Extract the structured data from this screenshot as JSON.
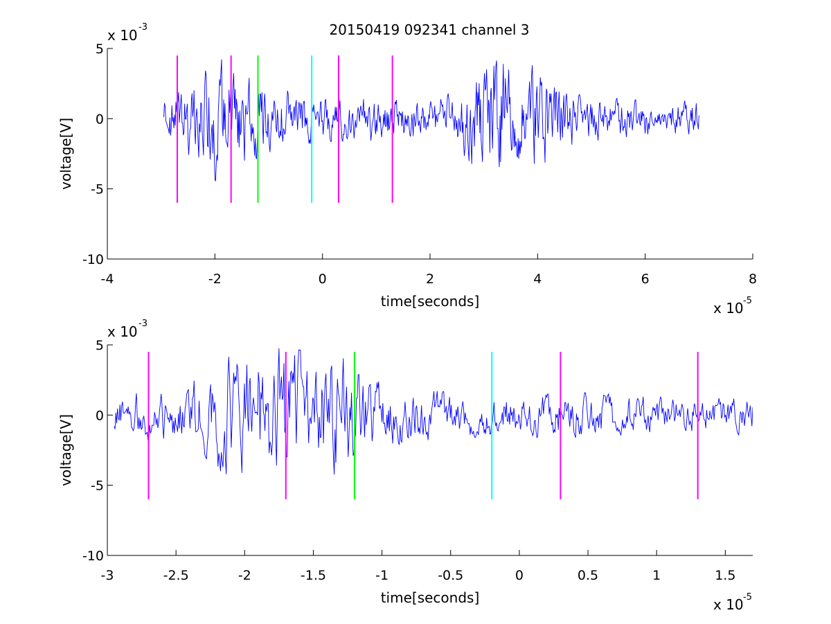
{
  "figure": {
    "title": "20150419 092341 channel 3"
  },
  "chart_data": [
    {
      "type": "line",
      "title": "20150419 092341 channel 3",
      "xlabel": "time[seconds]",
      "ylabel": "voltage[V]",
      "x_exponent": "x 10",
      "x_exponent_power": "-5",
      "y_exponent": "x 10",
      "y_exponent_power": "-3",
      "xlim": [
        -4,
        8
      ],
      "ylim": [
        -10,
        5
      ],
      "x_ticks": [
        -4,
        -2,
        0,
        2,
        4,
        6,
        8
      ],
      "x_tick_labels": [
        "-4",
        "-2",
        "0",
        "2",
        "4",
        "6",
        "8"
      ],
      "y_ticks": [
        -10,
        -5,
        0,
        5
      ],
      "y_tick_labels": [
        "-10",
        "-5",
        "0",
        "5"
      ],
      "grid": false,
      "signal": {
        "color": "#0000ff",
        "x_range": [
          -2.95,
          7.0
        ],
        "envelope": [
          [
            -2.95,
            1.0
          ],
          [
            -2.0,
            2.8
          ],
          [
            -1.0,
            1.5
          ],
          [
            0.0,
            1.0
          ],
          [
            1.0,
            1.1
          ],
          [
            2.0,
            1.0
          ],
          [
            2.5,
            1.3
          ],
          [
            3.0,
            2.8
          ],
          [
            3.3,
            3.2
          ],
          [
            3.6,
            1.8
          ],
          [
            4.0,
            2.6
          ],
          [
            4.5,
            1.4
          ],
          [
            5.0,
            1.0
          ],
          [
            6.0,
            0.8
          ],
          [
            7.0,
            0.8
          ]
        ]
      },
      "markers": [
        {
          "x": -2.7,
          "color": "#ff00ff"
        },
        {
          "x": -1.7,
          "color": "#ff00ff"
        },
        {
          "x": -1.2,
          "color": "#00ff00"
        },
        {
          "x": -0.2,
          "color": "#00ffff"
        },
        {
          "x": 0.3,
          "color": "#ff00ff"
        },
        {
          "x": 1.3,
          "color": "#ff00ff"
        }
      ],
      "marker_y_range": [
        -6,
        4.5
      ]
    },
    {
      "type": "line",
      "title": "",
      "xlabel": "time[seconds]",
      "ylabel": "voltage[V]",
      "x_exponent": "x 10",
      "x_exponent_power": "-5",
      "y_exponent": "x 10",
      "y_exponent_power": "-3",
      "xlim": [
        -3.0,
        1.7
      ],
      "ylim": [
        -10,
        5
      ],
      "x_ticks": [
        -3,
        -2.5,
        -2,
        -1.5,
        -1,
        -0.5,
        0,
        0.5,
        1,
        1.5
      ],
      "x_tick_labels": [
        "-3",
        "-2.5",
        "-2",
        "-1.5",
        "-1",
        "-0.5",
        "0",
        "0.5",
        "1",
        "1.5"
      ],
      "y_ticks": [
        -10,
        -5,
        0,
        5
      ],
      "y_tick_labels": [
        "-10",
        "-5",
        "0",
        "5"
      ],
      "grid": false,
      "signal": {
        "color": "#0000ff",
        "x_range": [
          -2.95,
          1.7
        ],
        "envelope": [
          [
            -2.95,
            1.0
          ],
          [
            -2.5,
            1.2
          ],
          [
            -2.1,
            2.8
          ],
          [
            -1.7,
            3.0
          ],
          [
            -1.3,
            2.6
          ],
          [
            -1.0,
            1.4
          ],
          [
            -0.5,
            1.0
          ],
          [
            0.0,
            1.0
          ],
          [
            0.5,
            1.0
          ],
          [
            1.0,
            0.8
          ],
          [
            1.7,
            0.9
          ]
        ]
      },
      "markers": [
        {
          "x": -2.7,
          "color": "#ff00ff"
        },
        {
          "x": -1.7,
          "color": "#ff00ff"
        },
        {
          "x": -1.2,
          "color": "#00ff00"
        },
        {
          "x": -0.2,
          "color": "#00ffff"
        },
        {
          "x": 0.3,
          "color": "#ff00ff"
        },
        {
          "x": 1.3,
          "color": "#ff00ff"
        }
      ],
      "marker_y_range": [
        -6,
        4.5
      ]
    }
  ]
}
